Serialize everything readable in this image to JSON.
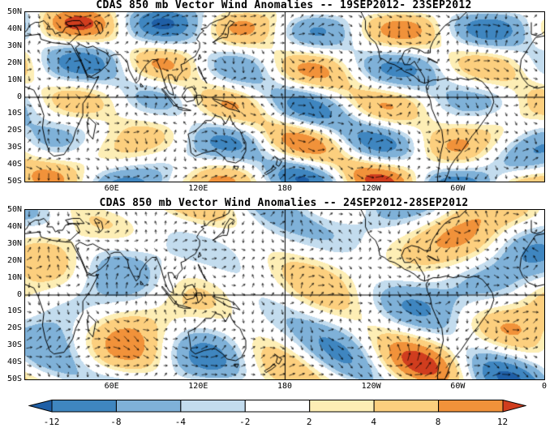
{
  "panels": [
    {
      "title": "CDAS 850 mb Vector Wind Anomalies -- 19SEP2012- 23SEP2012",
      "lat_ticks": [
        "50N",
        "40N",
        "30N",
        "20N",
        "10N",
        "0",
        "10S",
        "20S",
        "30S",
        "40S",
        "50S"
      ],
      "lon_ticks": [
        "60E",
        "120E",
        "180",
        "120W",
        "60W"
      ]
    },
    {
      "title": "CDAS 850 mb Vector Wind Anomalies -- 24SEP2012-28SEP2012",
      "lat_ticks": [
        "50N",
        "40N",
        "30N",
        "20N",
        "10N",
        "0",
        "10S",
        "20S",
        "30S",
        "40S",
        "50S"
      ],
      "lon_ticks": [
        "60E",
        "120E",
        "180",
        "120W",
        "60W",
        "0"
      ]
    }
  ],
  "colorbar": {
    "tick_labels": [
      "-12",
      "-8",
      "-4",
      "-2",
      "2",
      "4",
      "8",
      "12"
    ],
    "levels": [
      -12,
      -8,
      -4,
      -2,
      2,
      4,
      8,
      12
    ],
    "colors": [
      "#1f5fa6",
      "#3f86c0",
      "#7fb1d8",
      "#c3dcee",
      "#ffffff",
      "#fdeeb5",
      "#fccf7e",
      "#f1923a",
      "#d03d1e"
    ]
  },
  "style_colors": {
    "frame": "#000000",
    "coastline": "#000000",
    "arrows": "#000000",
    "background": "#ffffff"
  },
  "chart_data": [
    {
      "type": "heatmap",
      "subtype": "filled anomaly field with wind vector arrows and coastlines",
      "title": "CDAS 850 mb Vector Wind Anomalies -- 19SEP2012- 23SEP2012",
      "x_ticks": [
        "60E",
        "120E",
        "180",
        "120W",
        "60W"
      ],
      "y_ticks": [
        "50N",
        "40N",
        "30N",
        "20N",
        "10N",
        "0",
        "10S",
        "20S",
        "30S",
        "40S",
        "50S"
      ],
      "x_range_deg": [
        0,
        360
      ],
      "y_range_deg": [
        -50,
        50
      ],
      "levels": [
        -12,
        -8,
        -4,
        -2,
        2,
        4,
        8,
        12
      ],
      "palette": [
        "#1f5fa6",
        "#3f86c0",
        "#7fb1d8",
        "#c3dcee",
        "#ffffff",
        "#fdeeb5",
        "#fccf7e",
        "#f1923a",
        "#d03d1e"
      ],
      "gridlines": [
        "equator",
        "180 meridian"
      ],
      "legend_position": "shared bottom colorbar"
    },
    {
      "type": "heatmap",
      "subtype": "filled anomaly field with wind vector arrows and coastlines",
      "title": "CDAS 850 mb Vector Wind Anomalies -- 24SEP2012-28SEP2012",
      "x_ticks": [
        "60E",
        "120E",
        "180",
        "120W",
        "60W",
        "0"
      ],
      "y_ticks": [
        "50N",
        "40N",
        "30N",
        "20N",
        "10N",
        "0",
        "10S",
        "20S",
        "30S",
        "40S",
        "50S"
      ],
      "x_range_deg": [
        0,
        360
      ],
      "y_range_deg": [
        -50,
        50
      ],
      "levels": [
        -12,
        -8,
        -4,
        -2,
        2,
        4,
        8,
        12
      ],
      "palette": [
        "#1f5fa6",
        "#3f86c0",
        "#7fb1d8",
        "#c3dcee",
        "#ffffff",
        "#fdeeb5",
        "#fccf7e",
        "#f1923a",
        "#d03d1e"
      ],
      "gridlines": [
        "equator",
        "180 meridian"
      ],
      "legend_position": "shared bottom colorbar"
    }
  ]
}
